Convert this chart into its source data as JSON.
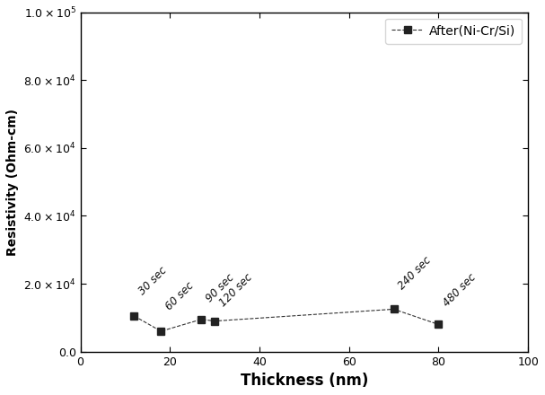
{
  "x": [
    12,
    18,
    27,
    30,
    70,
    80
  ],
  "y": [
    10500,
    6000,
    9500,
    9000,
    12500,
    8000
  ],
  "labels": [
    "30 sec",
    "60 sec",
    "90 sec",
    "120 sec",
    "240 sec",
    "480 sec"
  ],
  "label_offsets_y": [
    5500,
    5500,
    4500,
    3500,
    5000,
    4500
  ],
  "label_offsets_x": [
    0.5,
    0.5,
    0.5,
    0.5,
    0.5,
    0.5
  ],
  "label_rotation": 45,
  "line_color": "#333333",
  "marker": "s",
  "marker_size": 6,
  "marker_facecolor": "#222222",
  "legend_label": "After(Ni-Cr/Si)",
  "xlabel": "Thickness (nm)",
  "ylabel": "Resistivity (Ohm-cm)",
  "xlim": [
    0,
    100
  ],
  "ylim": [
    0,
    100000
  ],
  "yticks": [
    0,
    20000,
    40000,
    60000,
    80000,
    100000
  ],
  "xticks": [
    0,
    20,
    40,
    60,
    80,
    100
  ],
  "figsize": [
    6.07,
    4.4
  ],
  "dpi": 100,
  "background_color": "#ffffff",
  "line_style": "--",
  "line_width": 0.8
}
